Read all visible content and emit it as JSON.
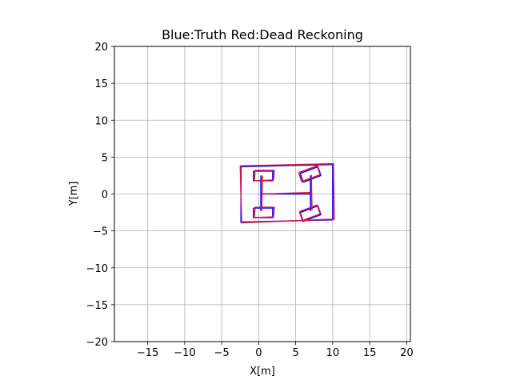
{
  "chart_data": {
    "type": "line",
    "title": "Blue:Truth Red:Dead Reckoning",
    "xlabel": "X[m]",
    "ylabel": "Y[m]",
    "xlim": [
      -19.5,
      20.5
    ],
    "ylim": [
      -20,
      20
    ],
    "xticks": [
      -15,
      -10,
      -5,
      0,
      5,
      10,
      15,
      20
    ],
    "yticks": [
      -20,
      -15,
      -10,
      -5,
      0,
      5,
      10,
      15,
      20
    ],
    "xtick_labels": [
      "−15",
      "−10",
      "−5",
      "0",
      "5",
      "10",
      "15",
      "20"
    ],
    "ytick_labels": [
      "−20",
      "−15",
      "−10",
      "−5",
      "0",
      "5",
      "10",
      "15",
      "20"
    ],
    "grid": true,
    "series": [
      {
        "color": "#0000ff",
        "parts": [
          {
            "x": [
              -2.4,
              10.0,
              10.0,
              -2.4,
              -2.4
            ],
            "y": [
              3.7,
              4.0,
              -3.5,
              -3.8,
              3.7
            ]
          },
          {
            "x": [
              0.3,
              0.3
            ],
            "y": [
              2.5,
              -2.3
            ]
          },
          {
            "x": [
              0.3,
              7.0
            ],
            "y": [
              0.0,
              0.0
            ]
          },
          {
            "x": [
              7.0,
              7.0
            ],
            "y": [
              2.5,
              -2.3
            ]
          },
          {
            "x": [
              -0.7,
              1.9,
              1.9,
              -0.7,
              -0.7
            ],
            "y": [
              3.1,
              3.1,
              1.8,
              1.8,
              3.1
            ]
          },
          {
            "x": [
              -0.7,
              1.9,
              1.9,
              -0.7,
              -0.7
            ],
            "y": [
              -1.9,
              -1.9,
              -3.2,
              -3.2,
              -1.9
            ]
          },
          {
            "x": [
              5.6,
              8.0,
              8.4,
              6.0,
              5.6
            ],
            "y": [
              2.8,
              3.7,
              2.5,
              1.6,
              2.8
            ]
          },
          {
            "x": [
              5.6,
              8.0,
              8.4,
              6.0,
              5.6
            ],
            "y": [
              -2.5,
              -1.6,
              -2.8,
              -3.7,
              -2.5
            ]
          }
        ]
      },
      {
        "color": "#dc143c",
        "parts": [
          {
            "x": [
              -2.5,
              10.1,
              10.2,
              -2.3,
              -2.5
            ],
            "y": [
              3.8,
              4.1,
              -3.4,
              -3.9,
              3.8
            ]
          },
          {
            "x": [
              0.5,
              0.4
            ],
            "y": [
              2.5,
              -2.3
            ]
          },
          {
            "x": [
              0.4,
              7.1
            ],
            "y": [
              0.0,
              0.2
            ]
          },
          {
            "x": [
              7.1,
              7.2
            ],
            "y": [
              2.6,
              -2.2
            ]
          },
          {
            "x": [
              -0.5,
              2.1,
              2.0,
              -0.6,
              -0.5
            ],
            "y": [
              3.2,
              3.2,
              1.9,
              1.8,
              3.2
            ]
          },
          {
            "x": [
              -0.5,
              2.1,
              2.0,
              -0.6,
              -0.5
            ],
            "y": [
              -1.8,
              -1.8,
              -3.1,
              -3.2,
              -1.8
            ]
          },
          {
            "x": [
              5.4,
              7.9,
              8.3,
              5.8,
              5.4
            ],
            "y": [
              2.9,
              3.8,
              2.6,
              1.7,
              2.9
            ]
          },
          {
            "x": [
              5.5,
              7.9,
              8.3,
              5.9,
              5.5
            ],
            "y": [
              -2.4,
              -1.5,
              -2.7,
              -3.6,
              -2.4
            ]
          }
        ]
      }
    ]
  }
}
